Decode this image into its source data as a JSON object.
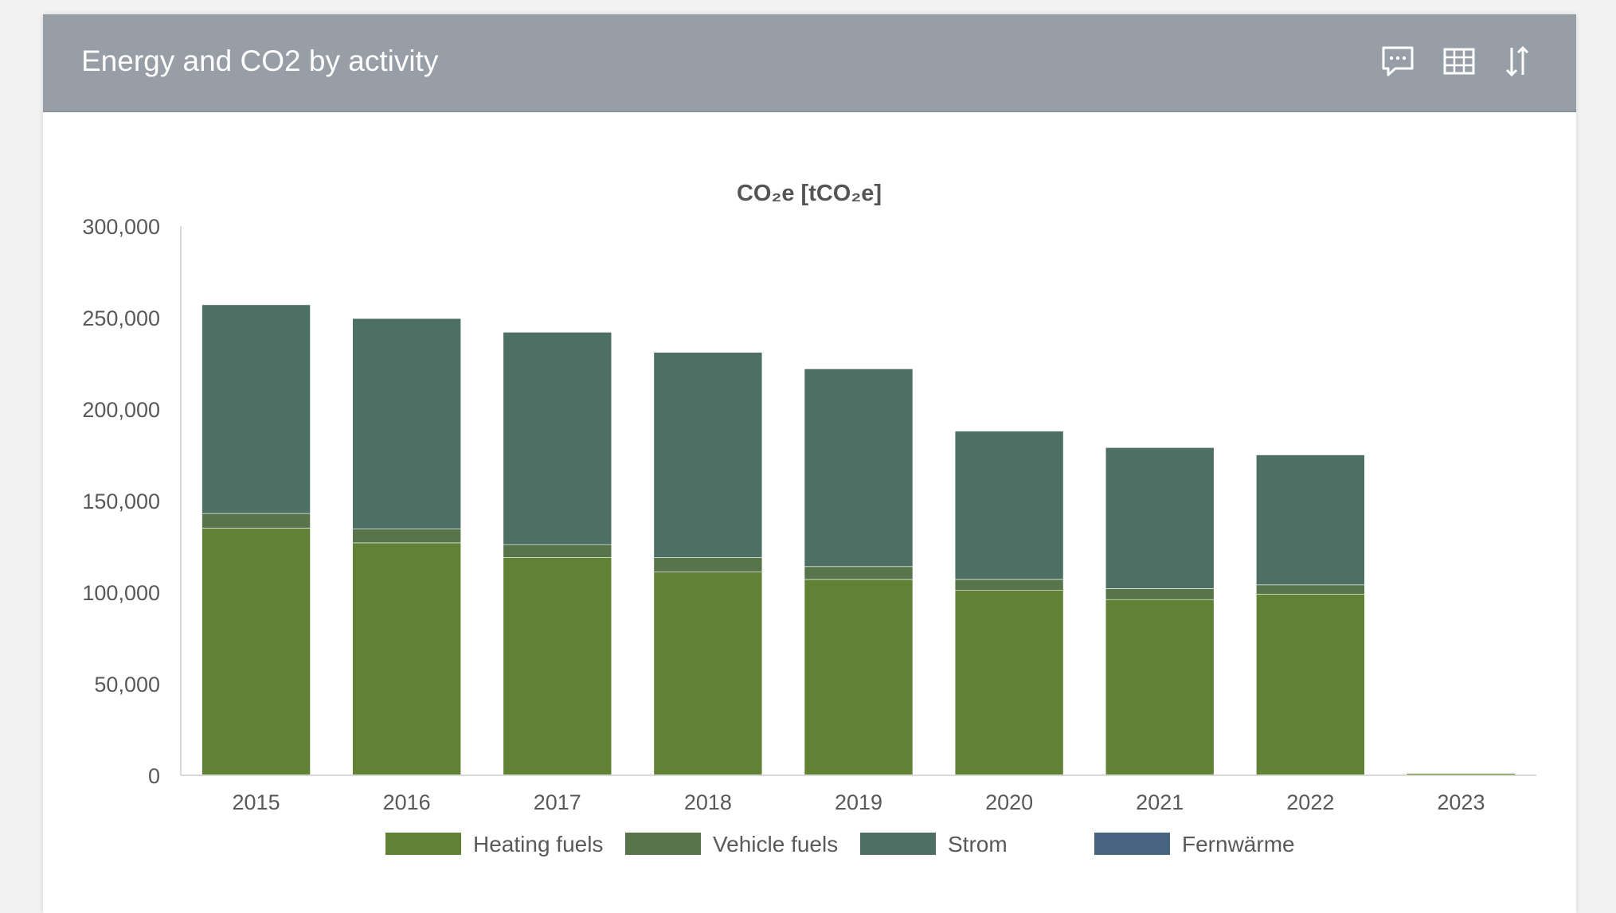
{
  "header": {
    "title": "Energy and CO2 by activity",
    "icons": [
      "comment-icon",
      "table-icon",
      "sort-icon"
    ]
  },
  "chart_data": {
    "type": "bar",
    "stacked": true,
    "title": "CO₂e [tCO₂e]",
    "xlabel": "",
    "ylabel": "",
    "ylim": [
      0,
      300000
    ],
    "yticks": [
      0,
      50000,
      100000,
      150000,
      200000,
      250000,
      300000
    ],
    "ytick_labels": [
      "0",
      "50,000",
      "100,000",
      "150,000",
      "200,000",
      "250,000",
      "300,000"
    ],
    "grid": false,
    "legend_position": "bottom",
    "categories": [
      "2015",
      "2016",
      "2017",
      "2018",
      "2019",
      "2020",
      "2021",
      "2022",
      "2023"
    ],
    "series": [
      {
        "name": "Heating fuels",
        "color": "#618234",
        "values": [
          135000,
          127000,
          119000,
          111000,
          107000,
          101000,
          96000,
          99000,
          0
        ]
      },
      {
        "name": "Vehicle fuels",
        "color": "#57744a",
        "values": [
          8000,
          7500,
          7000,
          8000,
          7000,
          6000,
          6000,
          5000,
          0
        ]
      },
      {
        "name": "Strom",
        "color": "#4d6f64",
        "values": [
          114000,
          115000,
          116000,
          112000,
          108000,
          81000,
          77000,
          71000,
          0
        ]
      },
      {
        "name": "Fernwärme",
        "color": "#476580",
        "values": [
          0,
          0,
          0,
          0,
          0,
          0,
          0,
          0,
          0
        ]
      }
    ]
  }
}
